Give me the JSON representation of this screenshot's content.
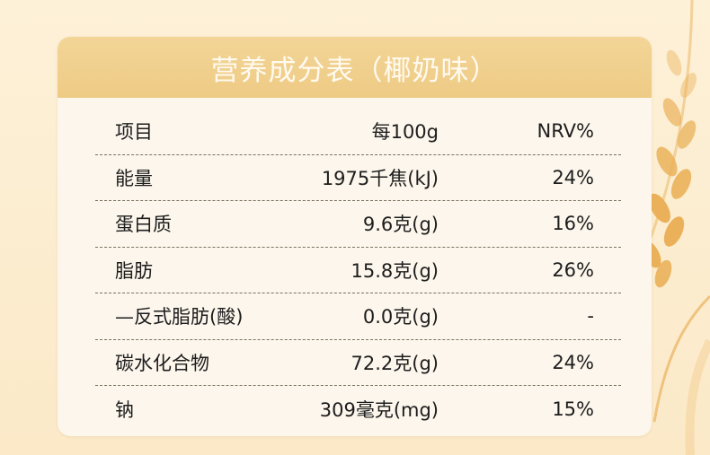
{
  "title": "营养成分表（椰奶味）",
  "header": {
    "item": "项目",
    "per": "每100g",
    "nrv": "NRV%"
  },
  "rows": [
    {
      "item": "能量",
      "per": "1975千焦(kJ)",
      "nrv": "24%"
    },
    {
      "item": "蛋白质",
      "per": "9.6克(g)",
      "nrv": "16%"
    },
    {
      "item": "脂肪",
      "per": "15.8克(g)",
      "nrv": "26%"
    },
    {
      "item": "—反式脂肪(酸)",
      "per": "0.0克(g)",
      "nrv": "-"
    },
    {
      "item": "碳水化合物",
      "per": "72.2克(g)",
      "nrv": "24%"
    },
    {
      "item": "钠",
      "per": "309毫克(mg)",
      "nrv": "15%"
    }
  ],
  "colors": {
    "background": "#fbecd0",
    "header": "#f0cd89",
    "card": "#fcf6ec",
    "wheat": "#e9b25c"
  },
  "decoration": "wheat-icon"
}
